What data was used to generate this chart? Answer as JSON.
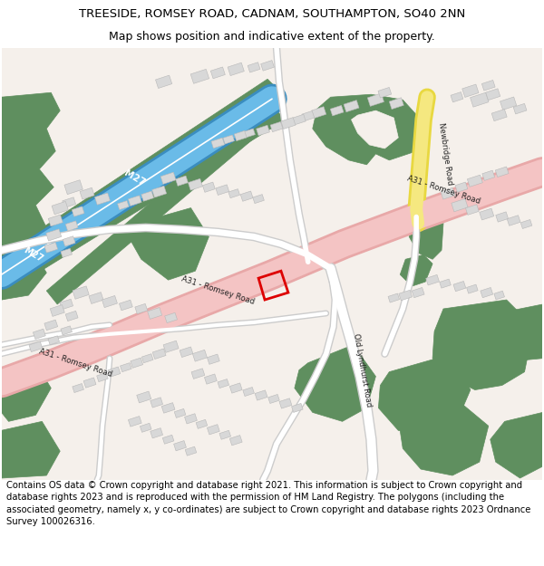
{
  "title_line1": "TREESIDE, ROMSEY ROAD, CADNAM, SOUTHAMPTON, SO40 2NN",
  "title_line2": "Map shows position and indicative extent of the property.",
  "copyright_text": "Contains OS data © Crown copyright and database right 2021. This information is subject to Crown copyright and database rights 2023 and is reproduced with the permission of HM Land Registry. The polygons (including the associated geometry, namely x, y co-ordinates) are subject to Crown copyright and database rights 2023 Ordnance Survey 100026316.",
  "bg_color": "#ffffff",
  "map_bg": "#f5f0eb",
  "green_color": "#5f8f5f",
  "road_pink": "#f4c4c4",
  "road_pink_border": "#e8a8a8",
  "motorway_blue": "#6abbe8",
  "motorway_blue_border": "#3a8dc0",
  "motorway_green": "#4a7a4a",
  "yellow_road": "#f5e880",
  "yellow_road_border": "#e8d840",
  "building_fill": "#d8d8d8",
  "building_edge": "#b8b8b8",
  "water_blue": "#a8d4f0",
  "property_red": "#dd0000",
  "title_fontsize": 9.5,
  "subtitle_fontsize": 9.0,
  "copyright_fontsize": 7.2,
  "label_fontsize": 6.0
}
